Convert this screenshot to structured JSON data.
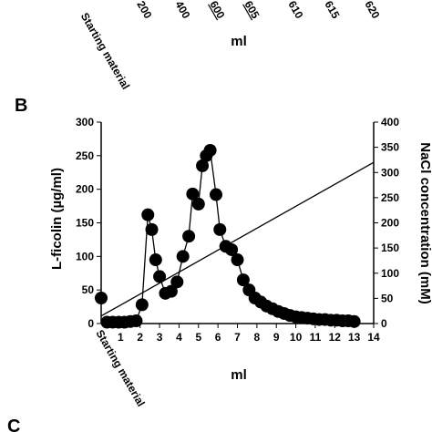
{
  "top_axis": {
    "labels": [
      "Starting material",
      "200",
      "400",
      "600",
      "605",
      "610",
      "615",
      "620"
    ],
    "xlabel": "ml"
  },
  "panel_labels": [
    "B",
    "C"
  ],
  "chart_data": {
    "type": "line",
    "xlabel": "ml",
    "ylabel": "L-ficolin (µg/ml)",
    "y2label": "NaCl concentration (mM)",
    "xlim": [
      0,
      14
    ],
    "xticks": [
      1,
      2,
      3,
      4,
      5,
      6,
      7,
      8,
      9,
      10,
      11,
      12,
      13,
      14
    ],
    "ylim": [
      0,
      300
    ],
    "yticks": [
      0,
      50,
      100,
      150,
      200,
      250,
      300
    ],
    "y2lim": [
      0,
      400
    ],
    "y2ticks": [
      0,
      50,
      100,
      150,
      200,
      250,
      300,
      350,
      400
    ],
    "annotations": [
      {
        "text": "Starting material",
        "x": 0
      }
    ],
    "series": [
      {
        "color": "#000000",
        "markers": false,
        "x": [
          0
        ],
        "values": [
          38
        ]
      },
      {
        "color": "#000000",
        "markers": true,
        "x": [
          0.3,
          0.6,
          0.9,
          1.2,
          1.5,
          1.8,
          2.1,
          2.4,
          2.6,
          2.8,
          3.0,
          3.3,
          3.6,
          3.9,
          4.2,
          4.5,
          4.7,
          5.0,
          5.2,
          5.4,
          5.6,
          5.9,
          6.1,
          6.4,
          6.7,
          7.0,
          7.3,
          7.6,
          7.9,
          8.2,
          8.5,
          8.8,
          9.1,
          9.4,
          9.7,
          10.0,
          10.3,
          10.6,
          10.9,
          11.2,
          11.5,
          11.8,
          12.1,
          12.4,
          12.7,
          13.0
        ],
        "values": [
          2,
          2,
          2,
          2,
          3,
          4,
          28,
          162,
          140,
          95,
          70,
          45,
          48,
          62,
          100,
          130,
          193,
          178,
          235,
          250,
          258,
          192,
          140,
          115,
          110,
          95,
          65,
          50,
          38,
          32,
          26,
          22,
          18,
          15,
          12,
          10,
          9,
          8,
          7,
          6,
          6,
          5,
          5,
          4,
          4,
          3
        ]
      },
      {
        "color": "#000000",
        "markers": false,
        "axis": "y2",
        "x": [
          0,
          14
        ],
        "values": [
          15,
          320
        ]
      }
    ]
  }
}
